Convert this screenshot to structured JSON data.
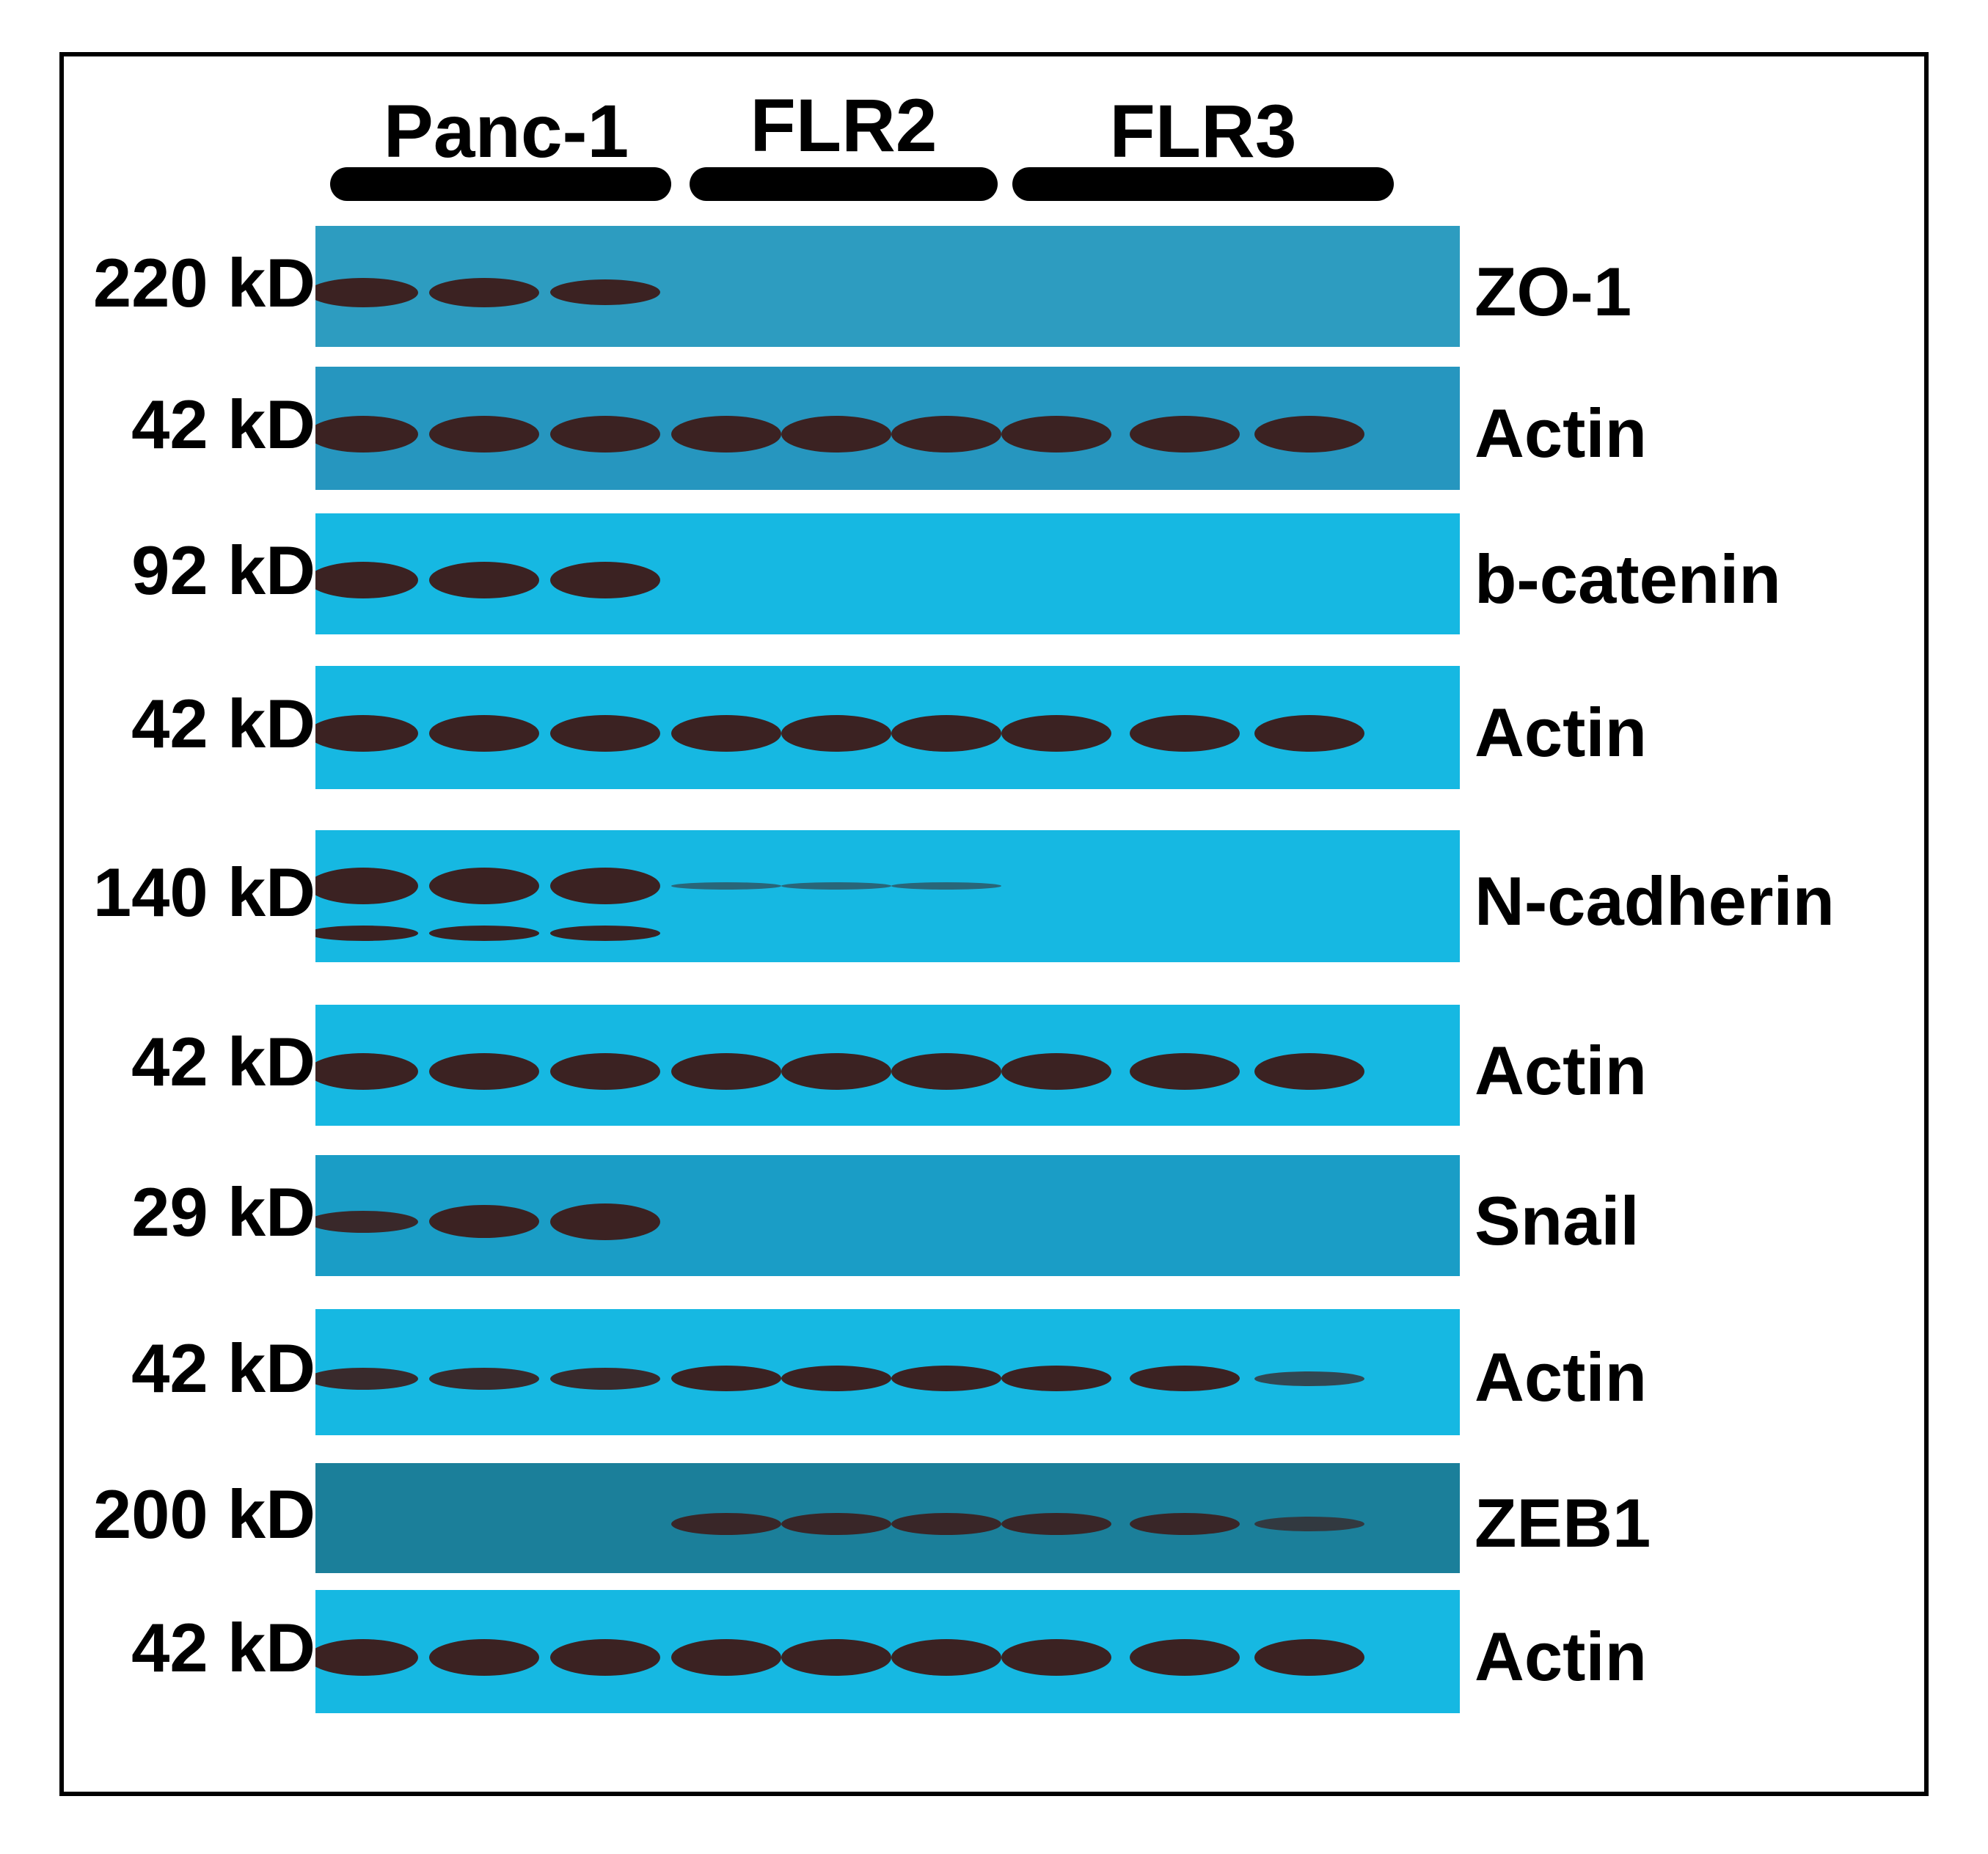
{
  "figure": {
    "lane_groups": [
      {
        "label": "Panc-1",
        "lanes": 3
      },
      {
        "label": "FLR2",
        "lanes": 3
      },
      {
        "label": "FLR3",
        "lanes": 3
      }
    ],
    "blots": [
      {
        "mw": "220 kD",
        "protein": "ZO-1",
        "background": "#2d9cc0",
        "bands": [
          0.8,
          0.8,
          0.7,
          0,
          0,
          0,
          0,
          0,
          0
        ]
      },
      {
        "mw": "42 kD",
        "protein": "Actin",
        "background": "#2696bf",
        "bands": [
          1,
          1,
          1,
          1,
          1,
          1,
          1,
          1,
          1
        ]
      },
      {
        "mw": "92 kD",
        "protein": "b-catenin",
        "background": "#16b8e2",
        "bands": [
          1,
          1,
          1,
          0,
          0,
          0,
          0,
          0,
          0
        ]
      },
      {
        "mw": "42 kD",
        "protein": "Actin",
        "background": "#16b8e2",
        "bands": [
          1,
          1,
          1,
          1,
          1,
          1,
          1,
          1,
          1
        ]
      },
      {
        "mw": "140 kD",
        "protein": "N-cadherin",
        "background": "#16b8e2",
        "bands": [
          1,
          1,
          1,
          0.2,
          0.2,
          0.2,
          0,
          0,
          0
        ],
        "secondary_bands": [
          0.8,
          0.8,
          0.8,
          0,
          0,
          0,
          0,
          0,
          0
        ]
      },
      {
        "mw": "42 kD",
        "protein": "Actin",
        "background": "#16b8e2",
        "bands": [
          1,
          1,
          1,
          1,
          1,
          1,
          1,
          1,
          1
        ]
      },
      {
        "mw": "29 kD",
        "protein": "Snail",
        "background": "#1a9dc6",
        "bands": [
          0.6,
          0.9,
          1,
          0,
          0,
          0,
          0,
          0,
          0
        ]
      },
      {
        "mw": "42 kD",
        "protein": "Actin",
        "background": "#16b8e2",
        "bands": [
          0.6,
          0.6,
          0.6,
          0.7,
          0.7,
          0.7,
          0.7,
          0.7,
          0.4
        ]
      },
      {
        "mw": "200 kD",
        "protein": "ZEB1",
        "background": "#1b7f9a",
        "bands": [
          0,
          0,
          0,
          0.6,
          0.6,
          0.6,
          0.6,
          0.6,
          0.4
        ]
      },
      {
        "mw": "42 kD",
        "protein": "Actin",
        "background": "#16b8e2",
        "bands": [
          1,
          1,
          1,
          1,
          1,
          1,
          1,
          1,
          1
        ]
      }
    ]
  }
}
